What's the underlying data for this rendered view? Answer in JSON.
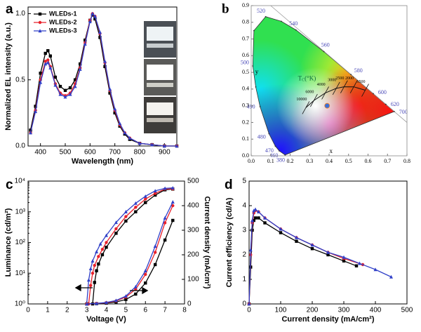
{
  "chart_data": [
    {
      "type": "line",
      "label": "a",
      "xlabel": "Wavelength (nm)",
      "ylabel": "Normalized EL intensity (a.u.)",
      "xlim": [
        350,
        950
      ],
      "xticks": [
        400,
        500,
        600,
        700,
        800,
        900
      ],
      "ylim": [
        0,
        1.05
      ],
      "yticks": [
        {
          "value": 0,
          "label": "0.0"
        },
        0.5,
        {
          "value": 1,
          "label": "1.0"
        }
      ],
      "legend": "upper left",
      "x": [
        360,
        380,
        400,
        420,
        430,
        440,
        460,
        480,
        500,
        520,
        540,
        560,
        580,
        600,
        610,
        620,
        640,
        660,
        680,
        700,
        720,
        740,
        760,
        800,
        850,
        900,
        950
      ],
      "series": [
        {
          "name": "WLEDs-1",
          "color": "#000000",
          "marker": "square",
          "values": [
            0.12,
            0.3,
            0.55,
            0.7,
            0.72,
            0.68,
            0.52,
            0.45,
            0.42,
            0.44,
            0.5,
            0.62,
            0.8,
            0.95,
            0.99,
            0.96,
            0.82,
            0.6,
            0.4,
            0.25,
            0.15,
            0.09,
            0.05,
            0.02,
            0.01,
            0.0,
            0.0
          ]
        },
        {
          "name": "WLEDs-2",
          "color": "#e8202a",
          "marker": "circle",
          "values": [
            0.1,
            0.27,
            0.5,
            0.64,
            0.65,
            0.6,
            0.47,
            0.4,
            0.38,
            0.4,
            0.47,
            0.59,
            0.78,
            0.95,
            1.0,
            0.98,
            0.85,
            0.63,
            0.42,
            0.27,
            0.16,
            0.1,
            0.06,
            0.02,
            0.01,
            0.0,
            0.0
          ]
        },
        {
          "name": "WLEDs-3",
          "color": "#3040c8",
          "marker": "triangle",
          "values": [
            0.1,
            0.26,
            0.48,
            0.62,
            0.63,
            0.59,
            0.46,
            0.39,
            0.37,
            0.39,
            0.45,
            0.58,
            0.77,
            0.94,
            1.0,
            0.98,
            0.86,
            0.64,
            0.43,
            0.28,
            0.17,
            0.1,
            0.06,
            0.02,
            0.01,
            0.0,
            0.0
          ]
        }
      ]
    },
    {
      "type": "cie",
      "label": "b",
      "xlabel": "x",
      "ylabel": "y",
      "xlim": [
        0,
        0.8
      ],
      "xticks": [
        {
          "value": 0,
          "label": "0.0"
        },
        0.1,
        0.2,
        0.3,
        0.4,
        0.5,
        0.6,
        0.7,
        0.8
      ],
      "ylim": [
        0,
        0.9
      ],
      "yticks": [
        {
          "value": 0,
          "label": "0.0"
        },
        0.1,
        0.2,
        0.3,
        0.4,
        0.5,
        0.6,
        0.7,
        0.8,
        0.9
      ],
      "locus": {
        "wavelengths": [
          380,
          460,
          470,
          480,
          490,
          null,
          500,
          null,
          520,
          null,
          540,
          560,
          580,
          600,
          620,
          700
        ],
        "x": [
          0.1741,
          0.144,
          0.1241,
          0.0913,
          0.0454,
          0.0235,
          0.0082,
          0.0139,
          0.0743,
          0.1547,
          0.2296,
          0.3731,
          0.5125,
          0.627,
          0.6915,
          0.7347
        ],
        "y": [
          0.005,
          0.0297,
          0.0578,
          0.1327,
          0.295,
          0.4127,
          0.5384,
          0.7502,
          0.8338,
          0.8059,
          0.7543,
          0.6245,
          0.4866,
          0.3725,
          0.3083,
          0.2653
        ],
        "color": "#4a4ab8"
      },
      "planck": {
        "title": [
          "T",
          "C",
          "(°K)"
        ],
        "temperatures": [
          10000,
          6000,
          4000,
          3000,
          2500,
          2000,
          1500
        ],
        "x": [
          0.2807,
          0.3221,
          0.3805,
          0.4369,
          0.477,
          0.5267,
          0.5857
        ],
        "y": [
          0.2884,
          0.3318,
          0.3768,
          0.4041,
          0.4137,
          0.4133,
          0.3931
        ]
      },
      "points": {
        "x": [
          0.39
        ],
        "y": [
          0.3
        ],
        "color": "#3a6fd8"
      }
    },
    {
      "type": "line",
      "label": "c",
      "xlabel": "Voltage (V)",
      "ylabel": "Luminance (cd/m²)",
      "y2label": "Current density (mA/cm²)",
      "xlim": [
        0,
        8
      ],
      "xticks": [
        0,
        1,
        2,
        3,
        4,
        5,
        6,
        7,
        8
      ],
      "yscale": "log",
      "ylim": [
        1,
        10000
      ],
      "yticks": [
        {
          "value": 1,
          "label": "10⁰"
        },
        {
          "value": 10,
          "label": "10¹"
        },
        {
          "value": 100,
          "label": "10²"
        },
        {
          "value": 1000,
          "label": "10³"
        },
        {
          "value": 10000,
          "label": "10⁴"
        }
      ],
      "y2lim": [
        0,
        500
      ],
      "y2ticks": [
        0,
        100,
        200,
        300,
        400,
        500
      ],
      "series": [
        {
          "color": "#000000",
          "marker": "square",
          "x": [
            3.3,
            3.4,
            3.5,
            3.6,
            3.8,
            4,
            4.5,
            5,
            5.5,
            6,
            6.5,
            7,
            7.4
          ],
          "values": [
            1,
            5,
            12,
            20,
            40,
            70,
            200,
            500,
            1000,
            2000,
            3500,
            5200,
            5500
          ]
        },
        {
          "color": "#e8202a",
          "marker": "circle",
          "x": [
            3.1,
            3.2,
            3.3,
            3.4,
            3.6,
            3.8,
            4,
            4.5,
            5,
            5.5,
            6,
            6.5,
            7,
            7.4
          ],
          "values": [
            1,
            4,
            10,
            18,
            35,
            60,
            100,
            280,
            700,
            1400,
            2600,
            4000,
            5500,
            5600
          ]
        },
        {
          "color": "#3040c8",
          "marker": "triangle",
          "x": [
            3.0,
            3.1,
            3.2,
            3.3,
            3.5,
            3.7,
            4,
            4.5,
            5,
            5.5,
            6,
            6.5,
            7,
            7.4
          ],
          "values": [
            1,
            6,
            14,
            25,
            50,
            90,
            170,
            450,
            1000,
            1900,
            3200,
            4800,
            5800,
            6000
          ]
        },
        {
          "color": "#000000",
          "marker": "square",
          "axis": "y2",
          "x": [
            3,
            3.5,
            4,
            4.5,
            5,
            5.5,
            6,
            6.5,
            7,
            7.4
          ],
          "values": [
            0,
            1,
            3,
            8,
            18,
            40,
            85,
            160,
            260,
            340
          ]
        },
        {
          "color": "#e8202a",
          "marker": "circle",
          "axis": "y2",
          "x": [
            3,
            3.5,
            4,
            4.5,
            5,
            5.5,
            6,
            6.5,
            7,
            7.4
          ],
          "values": [
            0,
            2,
            5,
            12,
            28,
            60,
            120,
            210,
            330,
            400
          ]
        },
        {
          "color": "#3040c8",
          "marker": "triangle",
          "axis": "y2",
          "x": [
            3,
            3.5,
            4,
            4.5,
            5,
            5.5,
            6,
            6.5,
            7,
            7.4
          ],
          "values": [
            0,
            2,
            6,
            14,
            32,
            70,
            135,
            235,
            350,
            415
          ]
        }
      ]
    },
    {
      "type": "line",
      "label": "d",
      "xlabel": "Current density (mA/cm²)",
      "ylabel": "Current efficiency (cd/A)",
      "xlim": [
        0,
        500
      ],
      "xticks": [
        0,
        100,
        200,
        300,
        400,
        500
      ],
      "ylim": [
        0,
        5
      ],
      "yticks": [
        0,
        1,
        2,
        3,
        4,
        5
      ],
      "series": [
        {
          "color": "#000000",
          "marker": "square",
          "x": [
            0,
            5,
            10,
            15,
            20,
            30,
            50,
            100,
            150,
            200,
            250,
            300,
            340
          ],
          "values": [
            0,
            1.5,
            3,
            3.4,
            3.5,
            3.5,
            3.3,
            2.9,
            2.55,
            2.25,
            2.0,
            1.75,
            1.55
          ]
        },
        {
          "color": "#e8202a",
          "marker": "circle",
          "x": [
            0,
            5,
            10,
            15,
            20,
            30,
            50,
            100,
            150,
            200,
            250,
            300,
            360
          ],
          "values": [
            0,
            2,
            3.3,
            3.7,
            3.8,
            3.75,
            3.5,
            3.05,
            2.7,
            2.4,
            2.1,
            1.85,
            1.6
          ]
        },
        {
          "color": "#3040c8",
          "marker": "triangle",
          "x": [
            0,
            5,
            10,
            15,
            20,
            30,
            50,
            100,
            150,
            200,
            250,
            300,
            350,
            400,
            450
          ],
          "values": [
            0,
            2.2,
            3.4,
            3.8,
            3.85,
            3.75,
            3.5,
            3.05,
            2.7,
            2.4,
            2.1,
            1.9,
            1.65,
            1.4,
            1.1
          ]
        }
      ]
    }
  ]
}
